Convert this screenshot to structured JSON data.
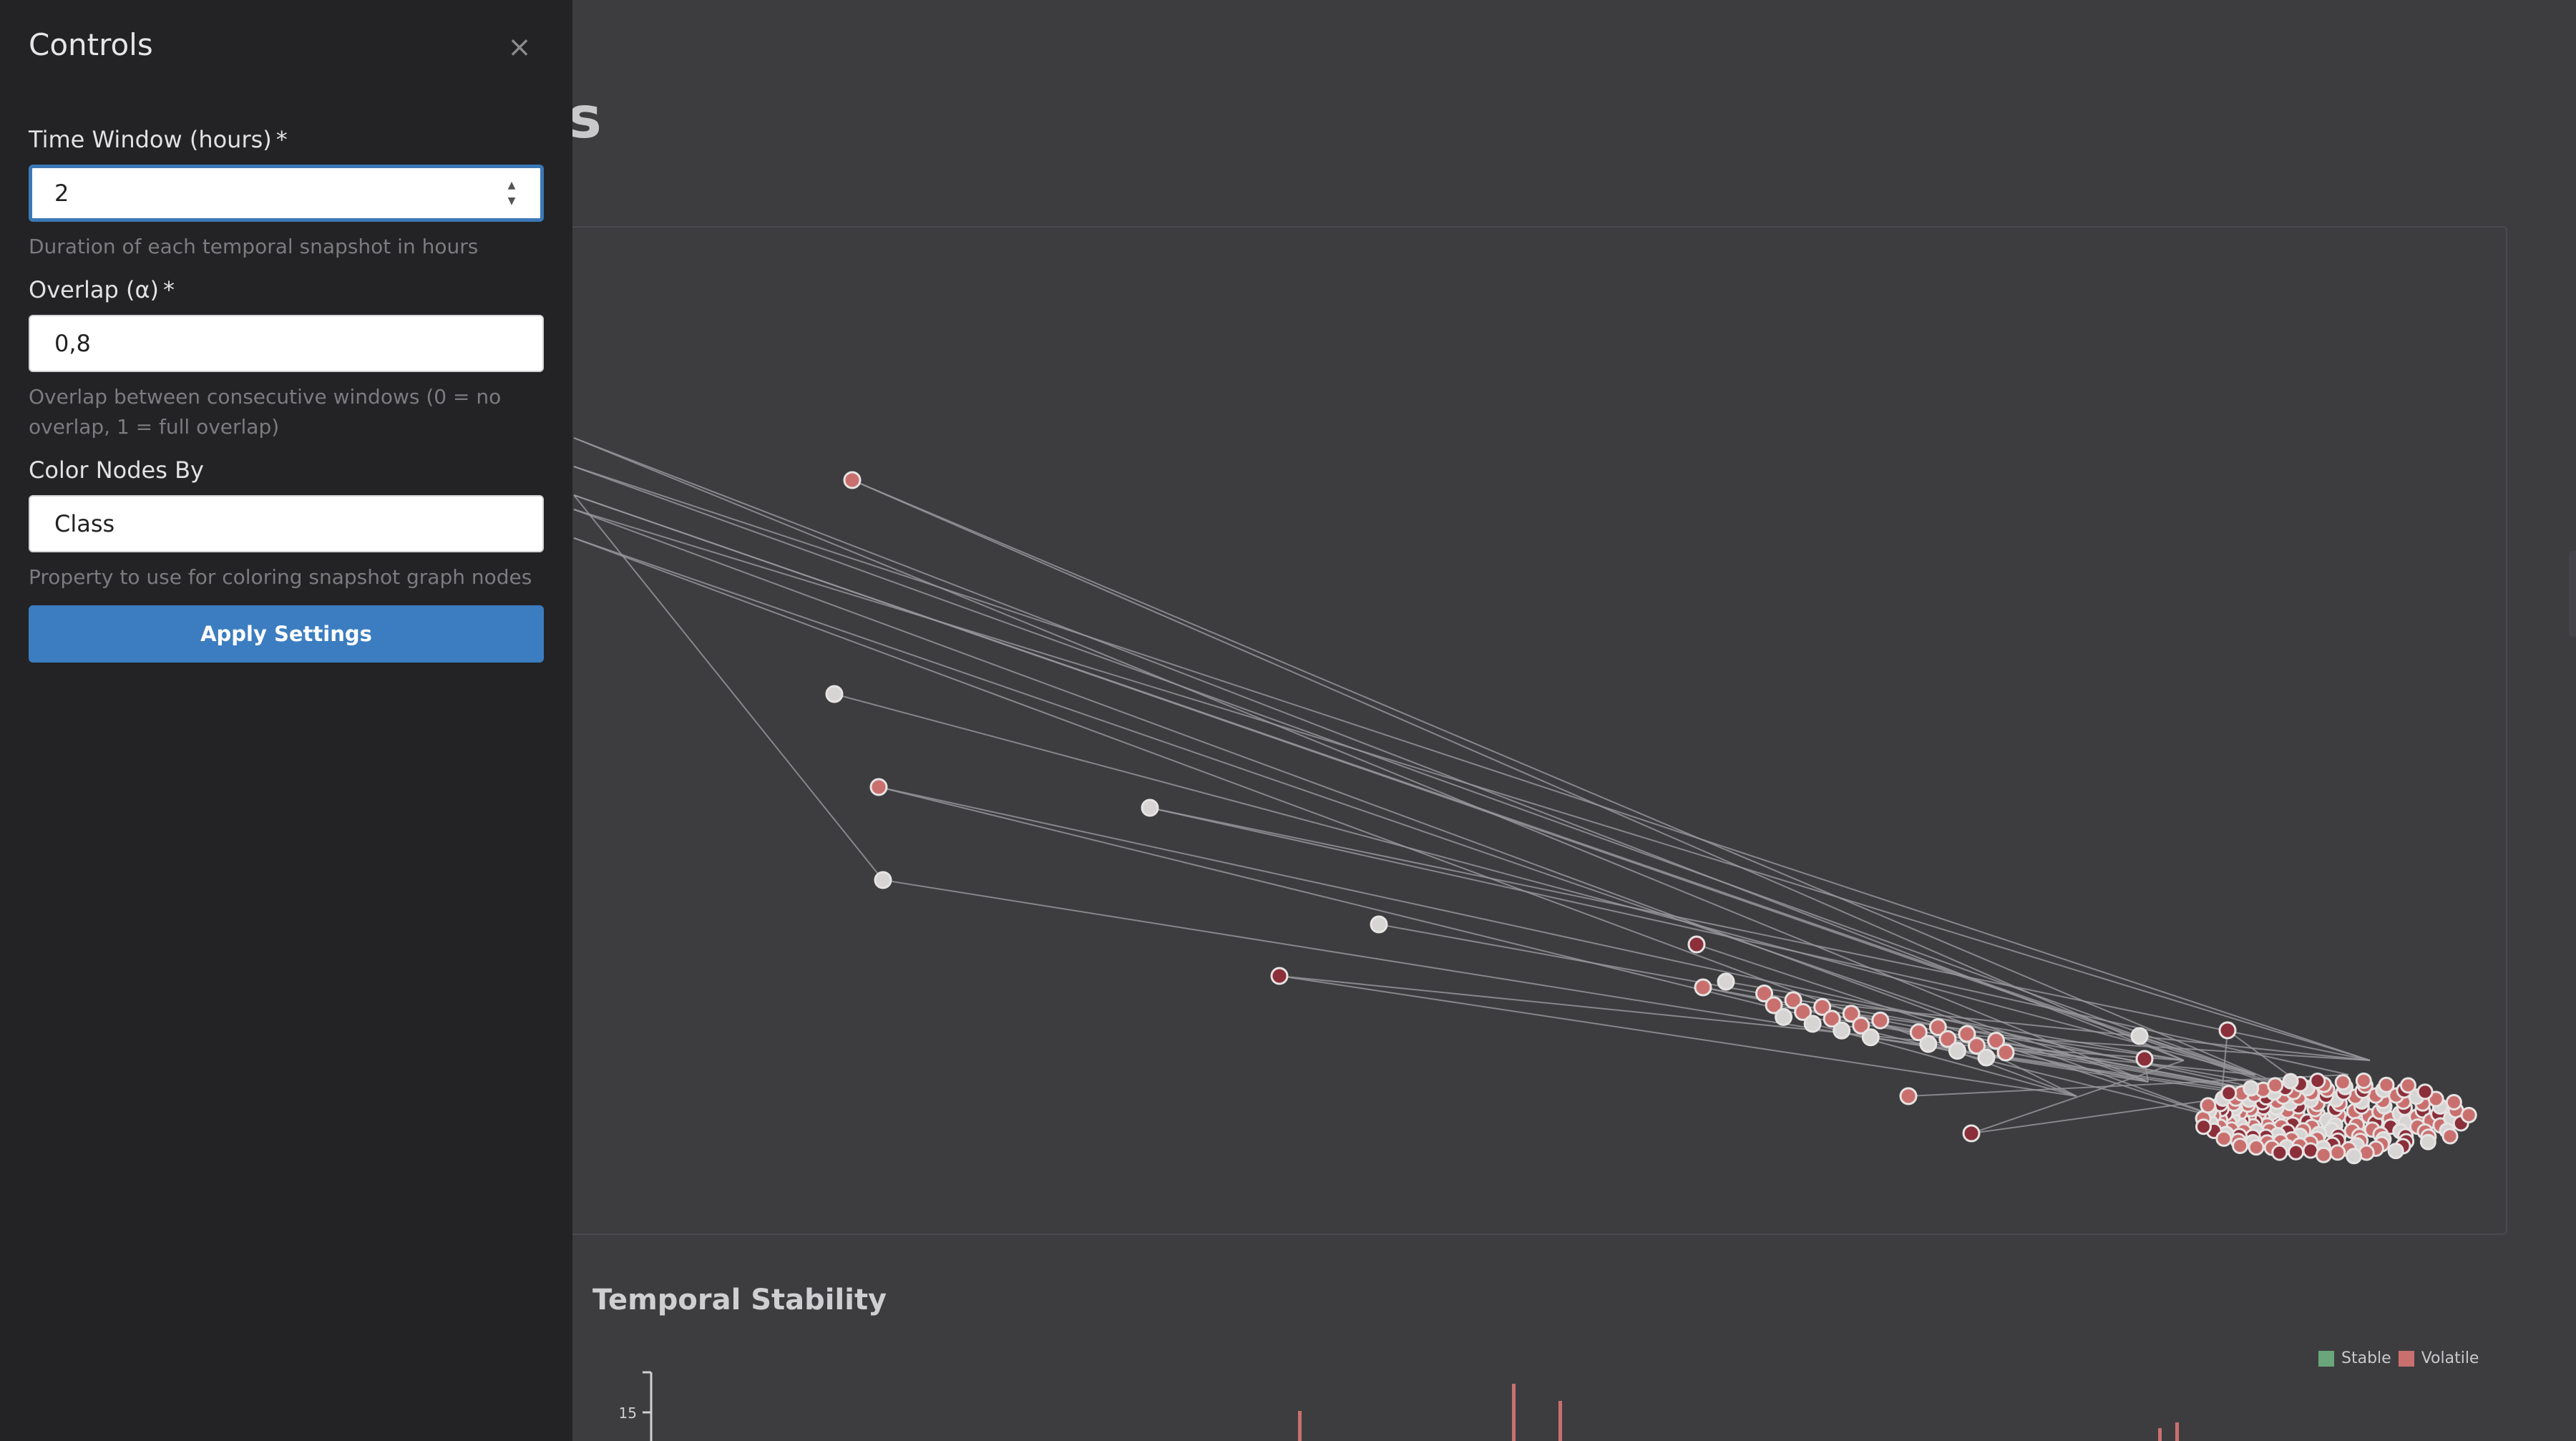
{
  "main": {
    "title_fragment": "ots",
    "section_title": "Temporal Stability",
    "legend": [
      {
        "label": "Stable",
        "color": "#6aa67a"
      },
      {
        "label": "Volatile",
        "color": "#c9706f"
      }
    ],
    "y_tick_label": "15"
  },
  "drawer": {
    "title": "Controls",
    "close_icon": "close-icon",
    "time_window": {
      "label": "Time Window (hours)",
      "required_mark": "*",
      "value": "2",
      "hint": "Duration of each temporal snapshot in hours"
    },
    "overlap": {
      "label": "Overlap (α)",
      "required_mark": "*",
      "value": "0,8",
      "hint": "Overlap between consecutive windows (0 = no overlap, 1 = full overlap)"
    },
    "color_by": {
      "label": "Color Nodes By",
      "value": "Class",
      "hint": "Property to use for coloring snapshot graph nodes"
    },
    "apply_label": "Apply Settings"
  },
  "colors": {
    "accent": "#3b7dc0",
    "node_red": "#c9706f",
    "node_dark": "#8b2f3a",
    "node_light": "#d7d4d4"
  }
}
